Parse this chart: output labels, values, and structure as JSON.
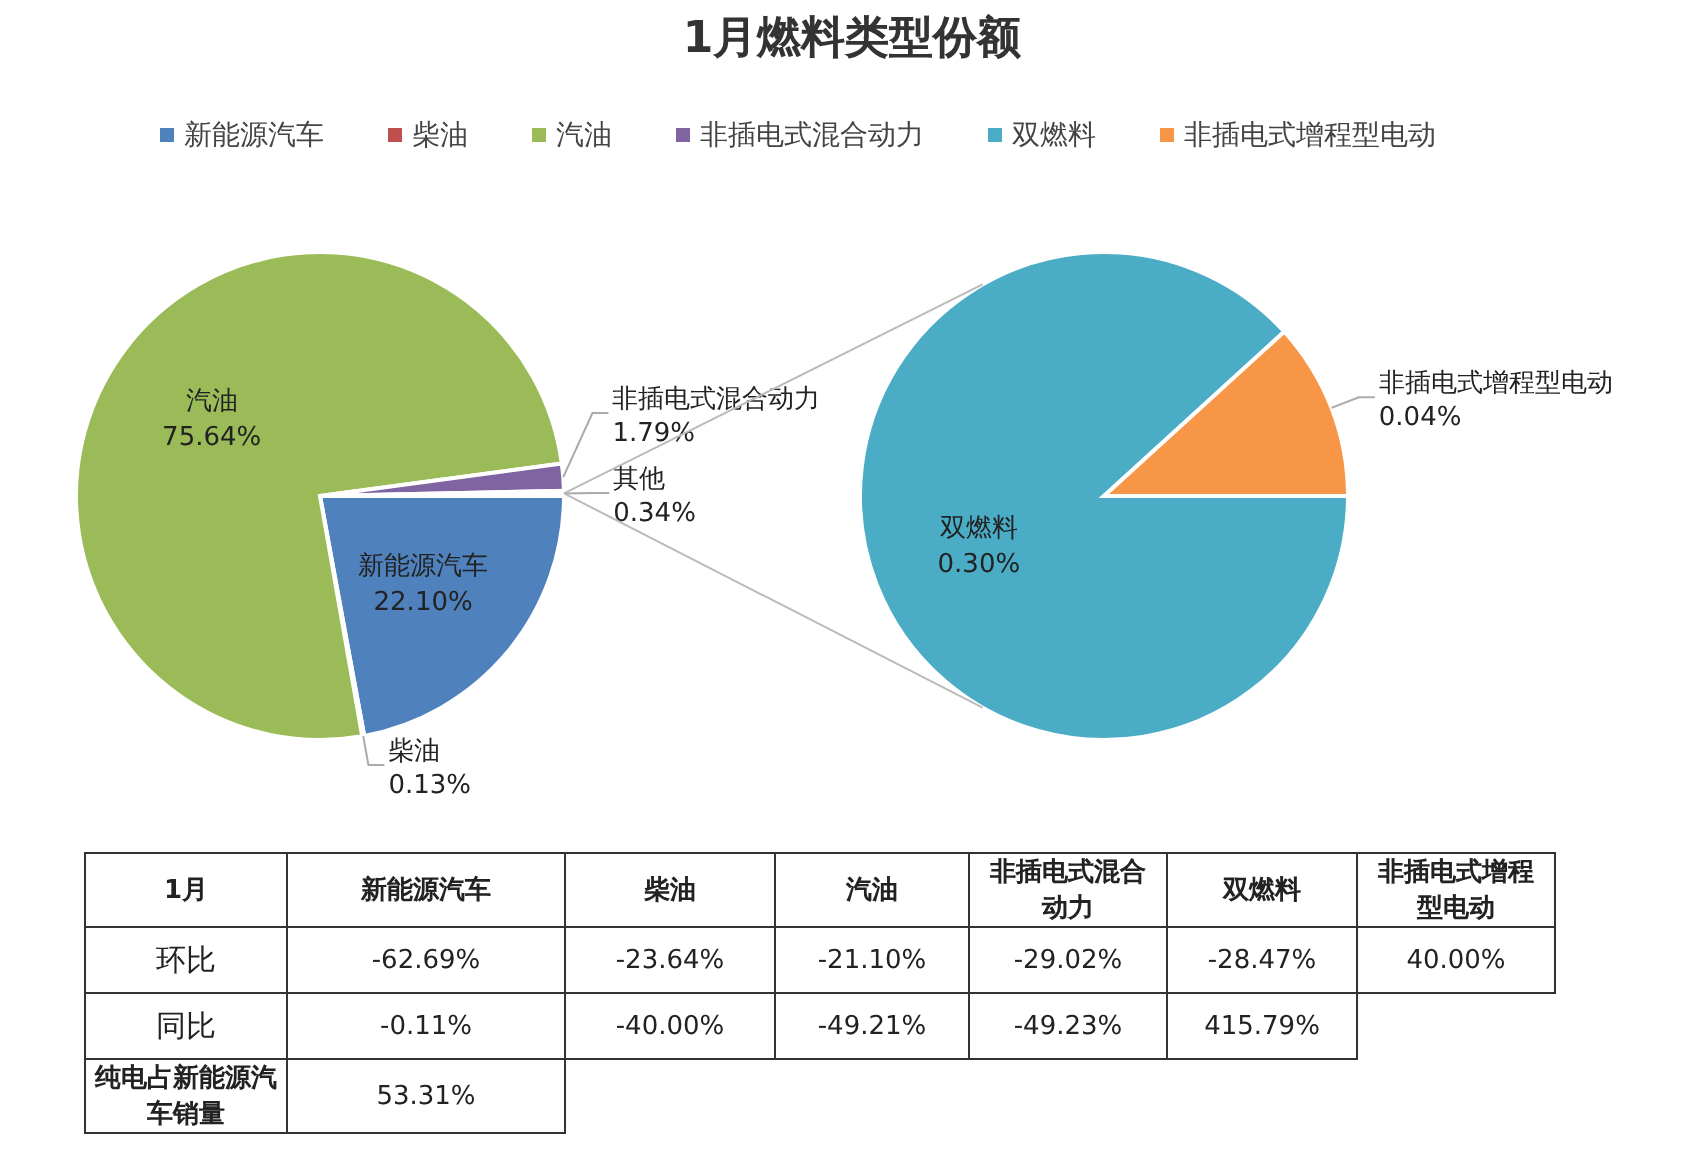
{
  "chart_data": [
    {
      "type": "pie",
      "title": "1月燃料类型份额",
      "legend": "top",
      "data_labels": true,
      "categories": [
        "新能源汽车",
        "柴油",
        "汽油",
        "非插电式混合动力",
        "其他"
      ],
      "values": [
        22.1,
        0.13,
        75.64,
        1.79,
        0.34
      ],
      "value_labels": [
        "22.10%",
        "0.13%",
        "75.64%",
        "1.79%",
        "0.34%"
      ],
      "colors": [
        "#4f81bd",
        "#c0504d",
        "#9bbb59",
        "#8064a2",
        null
      ]
    },
    {
      "type": "pie",
      "legend": "top",
      "data_labels": true,
      "categories": [
        "双燃料",
        "非插电式增程型电动"
      ],
      "values": [
        0.3,
        0.04
      ],
      "value_labels": [
        "0.30%",
        "0.04%"
      ],
      "colors": [
        "#4bacc6",
        "#f79646"
      ]
    },
    {
      "type": "other",
      "title": "1月",
      "categories": [
        "新能源汽车",
        "柴油",
        "汽油",
        "非插电式混合动力",
        "双燃料",
        "非插电式增程型电动"
      ],
      "y_categories": [
        "环比",
        "同比",
        "纯电占新能源汽车销量"
      ],
      "cell_labels": [
        [
          "-62.69%",
          "-23.64%",
          "-21.10%",
          "-29.02%",
          "-28.47%",
          "40.00%"
        ],
        [
          "-0.11%",
          "-40.00%",
          "-49.21%",
          "-49.23%",
          "415.79%",
          null
        ],
        [
          "53.31%",
          null,
          null,
          null,
          null,
          null
        ]
      ]
    }
  ]
}
